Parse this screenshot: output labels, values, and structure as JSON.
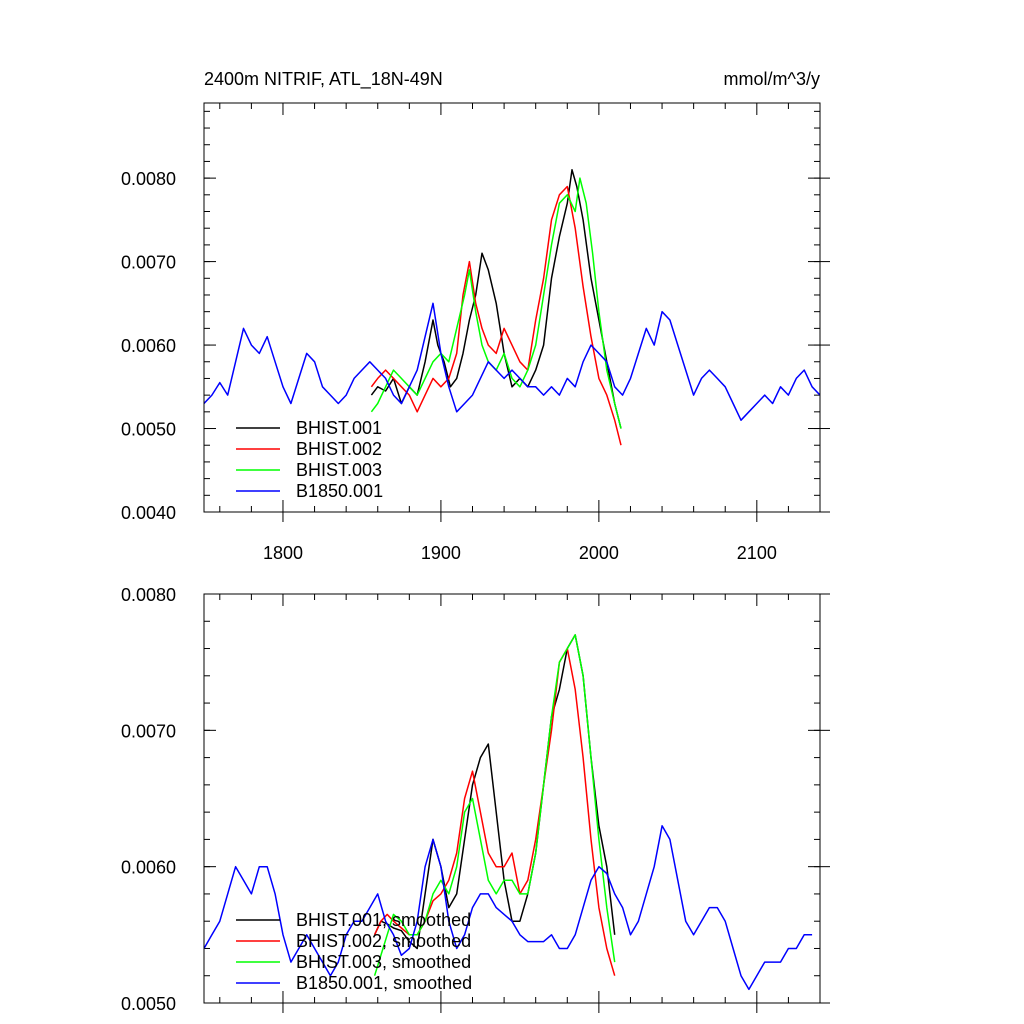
{
  "chart_data": [
    {
      "type": "line",
      "title": "2400m NITRIF, ATL_18N-49N",
      "units": "mmol/m^3/y",
      "xlim": [
        1750,
        2140
      ],
      "ylim": [
        0.004,
        0.0089
      ],
      "xticks": [
        1800,
        1900,
        2000,
        2100
      ],
      "xtick_labels": [
        "1800",
        "1900",
        "2000",
        "2100"
      ],
      "yticks": [
        0.004,
        0.005,
        0.006,
        0.007,
        0.008
      ],
      "ytick_labels": [
        "0.0040",
        "0.0050",
        "0.0060",
        "0.0070",
        "0.0080"
      ],
      "legend_position": "bottom-left",
      "series": [
        {
          "name": "BHIST.001",
          "color": "#000000",
          "x": [
            1856,
            1860,
            1865,
            1870,
            1875,
            1880,
            1885,
            1890,
            1895,
            1898,
            1902,
            1906,
            1910,
            1914,
            1918,
            1922,
            1926,
            1930,
            1935,
            1940,
            1945,
            1950,
            1955,
            1960,
            1965,
            1970,
            1975,
            1980,
            1983,
            1986,
            1990,
            1995,
            2000,
            2005,
            2010,
            2014
          ],
          "y": [
            0.0054,
            0.0055,
            0.00545,
            0.0056,
            0.0053,
            0.0055,
            0.0054,
            0.0058,
            0.0063,
            0.006,
            0.0058,
            0.0055,
            0.0056,
            0.0059,
            0.0063,
            0.0066,
            0.0071,
            0.0069,
            0.0065,
            0.0059,
            0.0055,
            0.0056,
            0.0055,
            0.0057,
            0.006,
            0.0068,
            0.0073,
            0.0077,
            0.0081,
            0.0079,
            0.0075,
            0.0068,
            0.0063,
            0.0058,
            0.0053,
            0.005
          ]
        },
        {
          "name": "BHIST.002",
          "color": "#ff0000",
          "x": [
            1856,
            1860,
            1865,
            1870,
            1875,
            1880,
            1885,
            1890,
            1895,
            1900,
            1905,
            1910,
            1914,
            1918,
            1922,
            1926,
            1930,
            1935,
            1940,
            1945,
            1950,
            1955,
            1960,
            1965,
            1970,
            1975,
            1980,
            1985,
            1990,
            1995,
            2000,
            2005,
            2010,
            2014
          ],
          "y": [
            0.0055,
            0.0056,
            0.0057,
            0.0056,
            0.0055,
            0.0054,
            0.0052,
            0.0054,
            0.0056,
            0.0055,
            0.0056,
            0.0059,
            0.0066,
            0.007,
            0.0065,
            0.0062,
            0.006,
            0.0059,
            0.0062,
            0.006,
            0.0058,
            0.0057,
            0.0063,
            0.0068,
            0.0075,
            0.0078,
            0.0079,
            0.0074,
            0.0067,
            0.0061,
            0.0056,
            0.0054,
            0.0051,
            0.0048
          ]
        },
        {
          "name": "BHIST.003",
          "color": "#00ff00",
          "x": [
            1856,
            1860,
            1865,
            1870,
            1875,
            1880,
            1885,
            1890,
            1895,
            1900,
            1905,
            1910,
            1915,
            1918,
            1922,
            1926,
            1930,
            1935,
            1940,
            1945,
            1950,
            1955,
            1960,
            1965,
            1970,
            1975,
            1980,
            1985,
            1988,
            1992,
            1996,
            2000,
            2005,
            2010,
            2014
          ],
          "y": [
            0.0052,
            0.0053,
            0.0055,
            0.0057,
            0.0056,
            0.0055,
            0.0054,
            0.0056,
            0.0058,
            0.0059,
            0.0058,
            0.0062,
            0.0066,
            0.0069,
            0.0064,
            0.006,
            0.0058,
            0.0057,
            0.0059,
            0.0056,
            0.0055,
            0.0057,
            0.006,
            0.0066,
            0.0072,
            0.0077,
            0.0078,
            0.0076,
            0.008,
            0.0077,
            0.0071,
            0.0064,
            0.0057,
            0.0053,
            0.005
          ]
        },
        {
          "name": "B1850.001",
          "color": "#0000ff",
          "x": [
            1750,
            1755,
            1760,
            1765,
            1770,
            1775,
            1780,
            1785,
            1790,
            1795,
            1800,
            1805,
            1810,
            1815,
            1820,
            1825,
            1830,
            1835,
            1840,
            1845,
            1850,
            1855,
            1860,
            1865,
            1870,
            1875,
            1880,
            1885,
            1890,
            1895,
            1900,
            1905,
            1910,
            1915,
            1920,
            1925,
            1930,
            1935,
            1940,
            1945,
            1950,
            1955,
            1960,
            1965,
            1970,
            1975,
            1980,
            1985,
            1990,
            1995,
            2000,
            2005,
            2010,
            2015,
            2020,
            2025,
            2030,
            2035,
            2040,
            2045,
            2050,
            2055,
            2060,
            2065,
            2070,
            2075,
            2080,
            2085,
            2090,
            2095,
            2100,
            2105,
            2110,
            2115,
            2120,
            2125,
            2130,
            2135,
            2140
          ],
          "y": [
            0.0053,
            0.0054,
            0.00555,
            0.0054,
            0.0058,
            0.0062,
            0.006,
            0.0059,
            0.0061,
            0.0058,
            0.0055,
            0.0053,
            0.0056,
            0.0059,
            0.0058,
            0.0055,
            0.0054,
            0.0053,
            0.0054,
            0.0056,
            0.0057,
            0.0058,
            0.0057,
            0.0056,
            0.0054,
            0.0053,
            0.0055,
            0.0057,
            0.0061,
            0.0065,
            0.0059,
            0.0055,
            0.0052,
            0.0053,
            0.0054,
            0.0056,
            0.0058,
            0.0057,
            0.0056,
            0.0057,
            0.0056,
            0.0055,
            0.0055,
            0.0054,
            0.0055,
            0.0054,
            0.0056,
            0.0055,
            0.0058,
            0.006,
            0.0059,
            0.0058,
            0.0055,
            0.0054,
            0.0056,
            0.0059,
            0.0062,
            0.006,
            0.0064,
            0.0063,
            0.006,
            0.0057,
            0.0054,
            0.0056,
            0.0057,
            0.0056,
            0.0055,
            0.0053,
            0.0051,
            0.0052,
            0.0053,
            0.0054,
            0.0053,
            0.0055,
            0.0054,
            0.0056,
            0.0057,
            0.0055,
            0.0054
          ]
        }
      ]
    },
    {
      "type": "line",
      "xlim": [
        1750,
        2140
      ],
      "ylim": [
        0.005,
        0.008
      ],
      "xticks": [
        1800,
        1900,
        2000,
        2100
      ],
      "yticks": [
        0.005,
        0.006,
        0.007,
        0.008
      ],
      "ytick_labels": [
        "0.0050",
        "0.0060",
        "0.0070",
        "0.0080"
      ],
      "legend_position": "bottom-left",
      "series": [
        {
          "name": "BHIST.001, smoothed",
          "color": "#000000",
          "x": [
            1858,
            1862,
            1866,
            1870,
            1875,
            1880,
            1885,
            1890,
            1895,
            1900,
            1905,
            1910,
            1915,
            1920,
            1925,
            1930,
            1935,
            1940,
            1945,
            1950,
            1955,
            1960,
            1965,
            1970,
            1975,
            1980,
            1985,
            1990,
            1995,
            2000,
            2005,
            2010
          ],
          "y": [
            0.0055,
            0.0056,
            0.00558,
            0.00555,
            0.00553,
            0.00545,
            0.0054,
            0.0058,
            0.0062,
            0.006,
            0.0057,
            0.0058,
            0.0062,
            0.0066,
            0.0068,
            0.0069,
            0.0064,
            0.0059,
            0.0056,
            0.0056,
            0.0058,
            0.0061,
            0.0066,
            0.0071,
            0.0073,
            0.0076,
            0.0077,
            0.0074,
            0.0068,
            0.0063,
            0.006,
            0.0055
          ]
        },
        {
          "name": "BHIST.002, smoothed",
          "color": "#ff0000",
          "x": [
            1858,
            1862,
            1866,
            1870,
            1875,
            1880,
            1885,
            1890,
            1895,
            1900,
            1905,
            1910,
            1915,
            1920,
            1925,
            1930,
            1935,
            1940,
            1945,
            1950,
            1955,
            1960,
            1965,
            1970,
            1975,
            1980,
            1985,
            1990,
            1995,
            2000,
            2005,
            2010
          ],
          "y": [
            0.0055,
            0.0056,
            0.00565,
            0.0056,
            0.00555,
            0.0055,
            0.0055,
            0.0056,
            0.00575,
            0.0058,
            0.0059,
            0.0061,
            0.0065,
            0.0067,
            0.0064,
            0.0061,
            0.006,
            0.006,
            0.0061,
            0.0058,
            0.0059,
            0.0062,
            0.0066,
            0.007,
            0.0075,
            0.0076,
            0.0073,
            0.0068,
            0.0062,
            0.0057,
            0.0054,
            0.0052
          ]
        },
        {
          "name": "BHIST.003, smoothed",
          "color": "#00ff00",
          "x": [
            1858,
            1862,
            1866,
            1870,
            1875,
            1880,
            1885,
            1890,
            1895,
            1900,
            1905,
            1910,
            1915,
            1920,
            1925,
            1930,
            1935,
            1940,
            1945,
            1950,
            1955,
            1960,
            1965,
            1970,
            1975,
            1980,
            1985,
            1990,
            1995,
            2000,
            2005,
            2010
          ],
          "y": [
            0.0052,
            0.00535,
            0.0055,
            0.00565,
            0.0056,
            0.0055,
            0.0055,
            0.0056,
            0.0058,
            0.0059,
            0.0058,
            0.006,
            0.0064,
            0.0065,
            0.0062,
            0.0059,
            0.0058,
            0.0059,
            0.0059,
            0.0058,
            0.0058,
            0.0061,
            0.0066,
            0.0071,
            0.0075,
            0.0076,
            0.0077,
            0.0074,
            0.0068,
            0.0062,
            0.0057,
            0.0053
          ]
        },
        {
          "name": "B1850.001, smoothed",
          "color": "#0000ff",
          "x": [
            1750,
            1755,
            1760,
            1765,
            1770,
            1775,
            1780,
            1785,
            1790,
            1795,
            1800,
            1805,
            1810,
            1815,
            1820,
            1825,
            1830,
            1835,
            1840,
            1845,
            1850,
            1855,
            1860,
            1865,
            1870,
            1875,
            1880,
            1885,
            1890,
            1895,
            1900,
            1905,
            1910,
            1915,
            1920,
            1925,
            1930,
            1935,
            1940,
            1945,
            1950,
            1955,
            1960,
            1965,
            1970,
            1975,
            1980,
            1985,
            1990,
            1995,
            2000,
            2005,
            2010,
            2015,
            2020,
            2025,
            2030,
            2035,
            2040,
            2045,
            2050,
            2055,
            2060,
            2065,
            2070,
            2075,
            2080,
            2085,
            2090,
            2095,
            2100,
            2105,
            2110,
            2115,
            2120,
            2125,
            2130,
            2135
          ],
          "y": [
            0.0054,
            0.0055,
            0.0056,
            0.0058,
            0.006,
            0.0059,
            0.0058,
            0.006,
            0.006,
            0.0058,
            0.0055,
            0.0053,
            0.0054,
            0.0055,
            0.0054,
            0.0053,
            0.0052,
            0.0053,
            0.0055,
            0.0056,
            0.0056,
            0.0057,
            0.0058,
            0.0056,
            0.0055,
            0.00535,
            0.0054,
            0.0056,
            0.006,
            0.0062,
            0.006,
            0.0056,
            0.0054,
            0.0055,
            0.0057,
            0.0058,
            0.0058,
            0.0057,
            0.00565,
            0.0056,
            0.0055,
            0.00545,
            0.00545,
            0.00545,
            0.0055,
            0.0054,
            0.0054,
            0.0055,
            0.0057,
            0.0059,
            0.006,
            0.00595,
            0.0058,
            0.0057,
            0.0055,
            0.0056,
            0.0058,
            0.006,
            0.0063,
            0.0062,
            0.0059,
            0.0056,
            0.0055,
            0.0056,
            0.0057,
            0.0057,
            0.0056,
            0.0054,
            0.0052,
            0.0051,
            0.0052,
            0.0053,
            0.0053,
            0.0053,
            0.0054,
            0.0054,
            0.0055,
            0.0055
          ]
        }
      ]
    }
  ]
}
